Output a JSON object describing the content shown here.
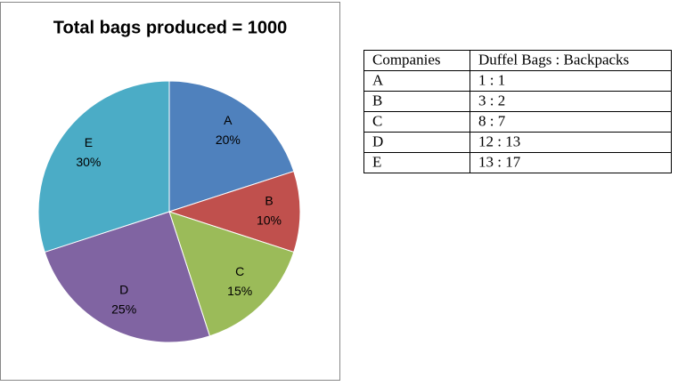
{
  "chart_data": {
    "type": "pie",
    "title": "Total bags produced = 1000",
    "categories": [
      "A",
      "B",
      "C",
      "D",
      "E"
    ],
    "values": [
      20,
      10,
      15,
      25,
      30
    ],
    "value_labels": [
      "20%",
      "10%",
      "15%",
      "25%",
      "30%"
    ],
    "colors": [
      "#4f81bd",
      "#c0504d",
      "#9bbb59",
      "#8064a2",
      "#4bacc6"
    ]
  },
  "table": {
    "header": [
      "Companies",
      "Duffel Bags : Backpacks"
    ],
    "rows": [
      [
        "A",
        "1 : 1"
      ],
      [
        "B",
        "3 : 2"
      ],
      [
        "C",
        "8 : 7"
      ],
      [
        "D",
        "12 : 13"
      ],
      [
        "E",
        "13 : 17"
      ]
    ]
  }
}
